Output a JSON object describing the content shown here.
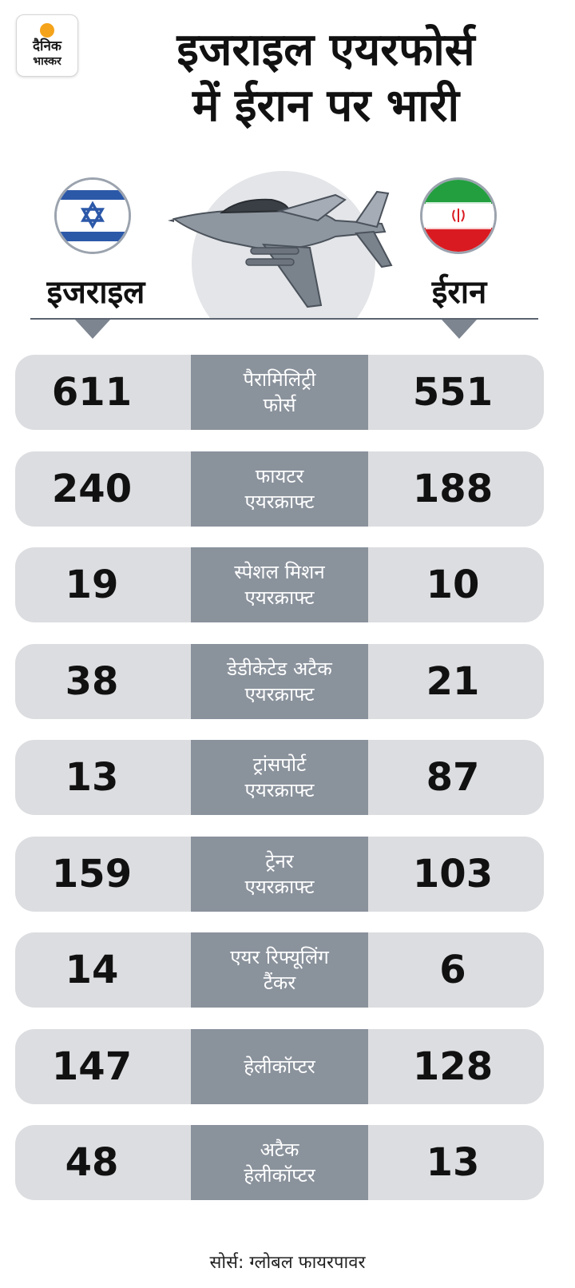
{
  "logo": {
    "line1": "दैनिक",
    "line2": "भास्कर"
  },
  "title_line1": "इजराइल एयरफोर्स",
  "title_line2": "में ईरान पर भारी",
  "countries": {
    "left": "इजराइल",
    "right": "ईरान"
  },
  "icons": [
    "israel-flag-icon",
    "iran-flag-icon",
    "fighter-jet-icon",
    "down-arrow-icon"
  ],
  "colors": {
    "row_bg": "#dcdde0",
    "label_bg": "#8a929c",
    "label_text": "#ffffff",
    "logo_dot": "#f5a31a"
  },
  "chart_data": {
    "type": "table",
    "title": "इजराइल एयरफोर्स में ईरान पर भारी",
    "columns": [
      "इजराइल",
      "",
      "ईरान"
    ],
    "rows": [
      {
        "category": [
          "पैरामिलिट्री",
          "फोर्स"
        ],
        "israel": "611",
        "iran": "551"
      },
      {
        "category": [
          "फायटर",
          "एयरक्राफ्ट"
        ],
        "israel": "240",
        "iran": "188"
      },
      {
        "category": [
          "स्पेशल मिशन",
          "एयरक्राफ्ट"
        ],
        "israel": "19",
        "iran": "10"
      },
      {
        "category": [
          "डेडीकेटेड अटैक",
          "एयरक्राफ्ट"
        ],
        "israel": "38",
        "iran": "21"
      },
      {
        "category": [
          "ट्रांसपोर्ट",
          "एयरक्राफ्ट"
        ],
        "israel": "13",
        "iran": "87"
      },
      {
        "category": [
          "ट्रेनर",
          "एयरक्राफ्ट"
        ],
        "israel": "159",
        "iran": "103"
      },
      {
        "category": [
          "एयर रिफ्यूलिंग",
          "टैंकर"
        ],
        "israel": "14",
        "iran": "6"
      },
      {
        "category": [
          "हेलीकॉप्टर"
        ],
        "israel": "147",
        "iran": "128"
      },
      {
        "category": [
          "अटैक",
          "हेलीकॉप्टर"
        ],
        "israel": "48",
        "iran": "13"
      }
    ]
  },
  "source": "सोर्स: ग्लोबल फायरपावर"
}
